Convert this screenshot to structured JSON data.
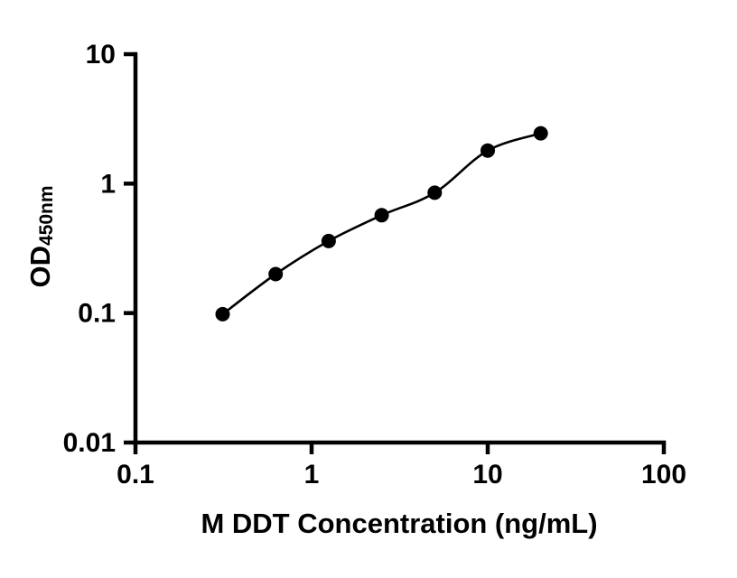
{
  "page": {
    "background": "#ffffff"
  },
  "chart_data": {
    "type": "scatter",
    "title": "",
    "xlabel": "M DDT Concentration (ng/mL)",
    "ylabel_main": "OD",
    "ylabel_sub": "450nm",
    "x_scale": "log",
    "y_scale": "log",
    "xlim": [
      0.1,
      100
    ],
    "ylim": [
      0.01,
      10
    ],
    "grid": false,
    "legend": "none",
    "x_ticks": [
      {
        "value": 0.1,
        "label": "0.1"
      },
      {
        "value": 1,
        "label": "1"
      },
      {
        "value": 10,
        "label": "10"
      },
      {
        "value": 100,
        "label": "100"
      }
    ],
    "y_ticks": [
      {
        "value": 0.01,
        "label": "0.01"
      },
      {
        "value": 0.1,
        "label": "0.1"
      },
      {
        "value": 1,
        "label": "1"
      },
      {
        "value": 10,
        "label": "10"
      }
    ],
    "points": [
      {
        "x": 0.3125,
        "y": 0.098
      },
      {
        "x": 0.625,
        "y": 0.2
      },
      {
        "x": 1.25,
        "y": 0.36
      },
      {
        "x": 2.5,
        "y": 0.57
      },
      {
        "x": 5,
        "y": 0.85
      },
      {
        "x": 10,
        "y": 1.8
      },
      {
        "x": 20,
        "y": 2.45
      }
    ],
    "curve": "4pl-fit-through-points",
    "colors": {
      "axis": "#000000",
      "point": "#000000",
      "curve": "#000000",
      "text": "#000000"
    }
  }
}
